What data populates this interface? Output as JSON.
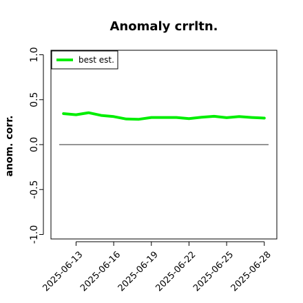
{
  "chart_data": {
    "type": "line",
    "title": "Anomaly crrltn.",
    "xlabel": "",
    "ylabel": "anom. corr.",
    "x": [
      "2025-06-12",
      "2025-06-13",
      "2025-06-14",
      "2025-06-15",
      "2025-06-16",
      "2025-06-17",
      "2025-06-18",
      "2025-06-19",
      "2025-06-20",
      "2025-06-21",
      "2025-06-22",
      "2025-06-23",
      "2025-06-24",
      "2025-06-25",
      "2025-06-26",
      "2025-06-27",
      "2025-06-28"
    ],
    "series": [
      {
        "name": "best est.",
        "color": "#00ee00",
        "values": [
          0.345,
          0.333,
          0.355,
          0.325,
          0.312,
          0.285,
          0.282,
          0.302,
          0.302,
          0.302,
          0.29,
          0.305,
          0.315,
          0.3,
          0.312,
          0.302,
          0.295
        ]
      }
    ],
    "reference_line": {
      "y": 0.0,
      "color": "#555555"
    },
    "xticks": [
      "2025-06-13",
      "2025-06-16",
      "2025-06-19",
      "2025-06-22",
      "2025-06-25",
      "2025-06-28"
    ],
    "yticks": [
      "-1.0",
      "-0.5",
      "0.0",
      "0.5",
      "1.0"
    ],
    "xlim": [
      "2025-06-11",
      "2025-06-29"
    ],
    "ylim": [
      -1.05,
      1.05
    ],
    "grid": false,
    "legend": "top-left"
  }
}
